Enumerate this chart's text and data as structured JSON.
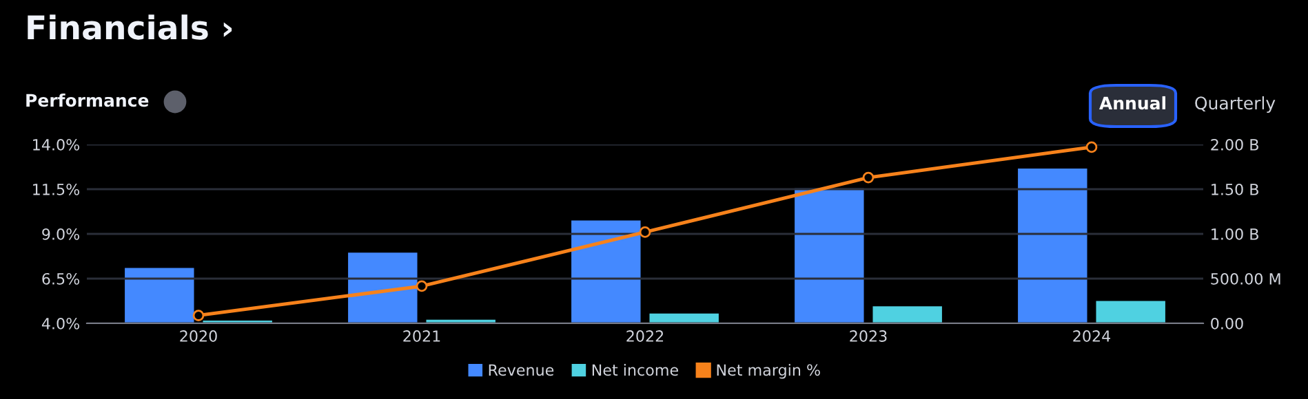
{
  "chart_data": {
    "type": "bar",
    "title": "Financials ›",
    "subtitle": "Performance",
    "annotations": [
      "Annual",
      "Quarterly"
    ],
    "categories": [
      "2020",
      "2021",
      "2022",
      "2023",
      "2024"
    ],
    "series": [
      {
        "name": "Revenue",
        "color": "#4489ff",
        "axis": "y2",
        "values": [
          620000000,
          790000000,
          1150000000,
          1510000000,
          1730000000
        ]
      },
      {
        "name": "Net income",
        "color": "#4fd1e1",
        "axis": "y2",
        "values": [
          30000000,
          40000000,
          110000000,
          190000000,
          250000000
        ]
      },
      {
        "name": "Net margin %",
        "type": "line",
        "color": "#f7821b",
        "marker": "circle",
        "values": [
          4.44,
          6.08,
          9.1,
          12.15,
          13.85
        ]
      }
    ],
    "ylim": [
      4.0,
      14.0
    ],
    "yticks": [
      {
        "value": 4.0,
        "label": "4.0%"
      },
      {
        "value": 6.5,
        "label": "6.5%"
      },
      {
        "value": 9.0,
        "label": "9.0%"
      },
      {
        "value": 11.5,
        "label": "11.5%"
      },
      {
        "value": 14.0,
        "label": "14.0%"
      }
    ],
    "y2lim": [
      0,
      2000000000
    ],
    "y2ticks": [
      {
        "value": 0,
        "label": "0.00"
      },
      {
        "value": 500000000,
        "label": "500.00 M"
      },
      {
        "value": 1000000000,
        "label": "1.00 B"
      },
      {
        "value": 1500000000,
        "label": "1.50 B"
      },
      {
        "value": 2000000000,
        "label": "2.00 B"
      }
    ],
    "grid": "y",
    "legend": "bottom"
  }
}
